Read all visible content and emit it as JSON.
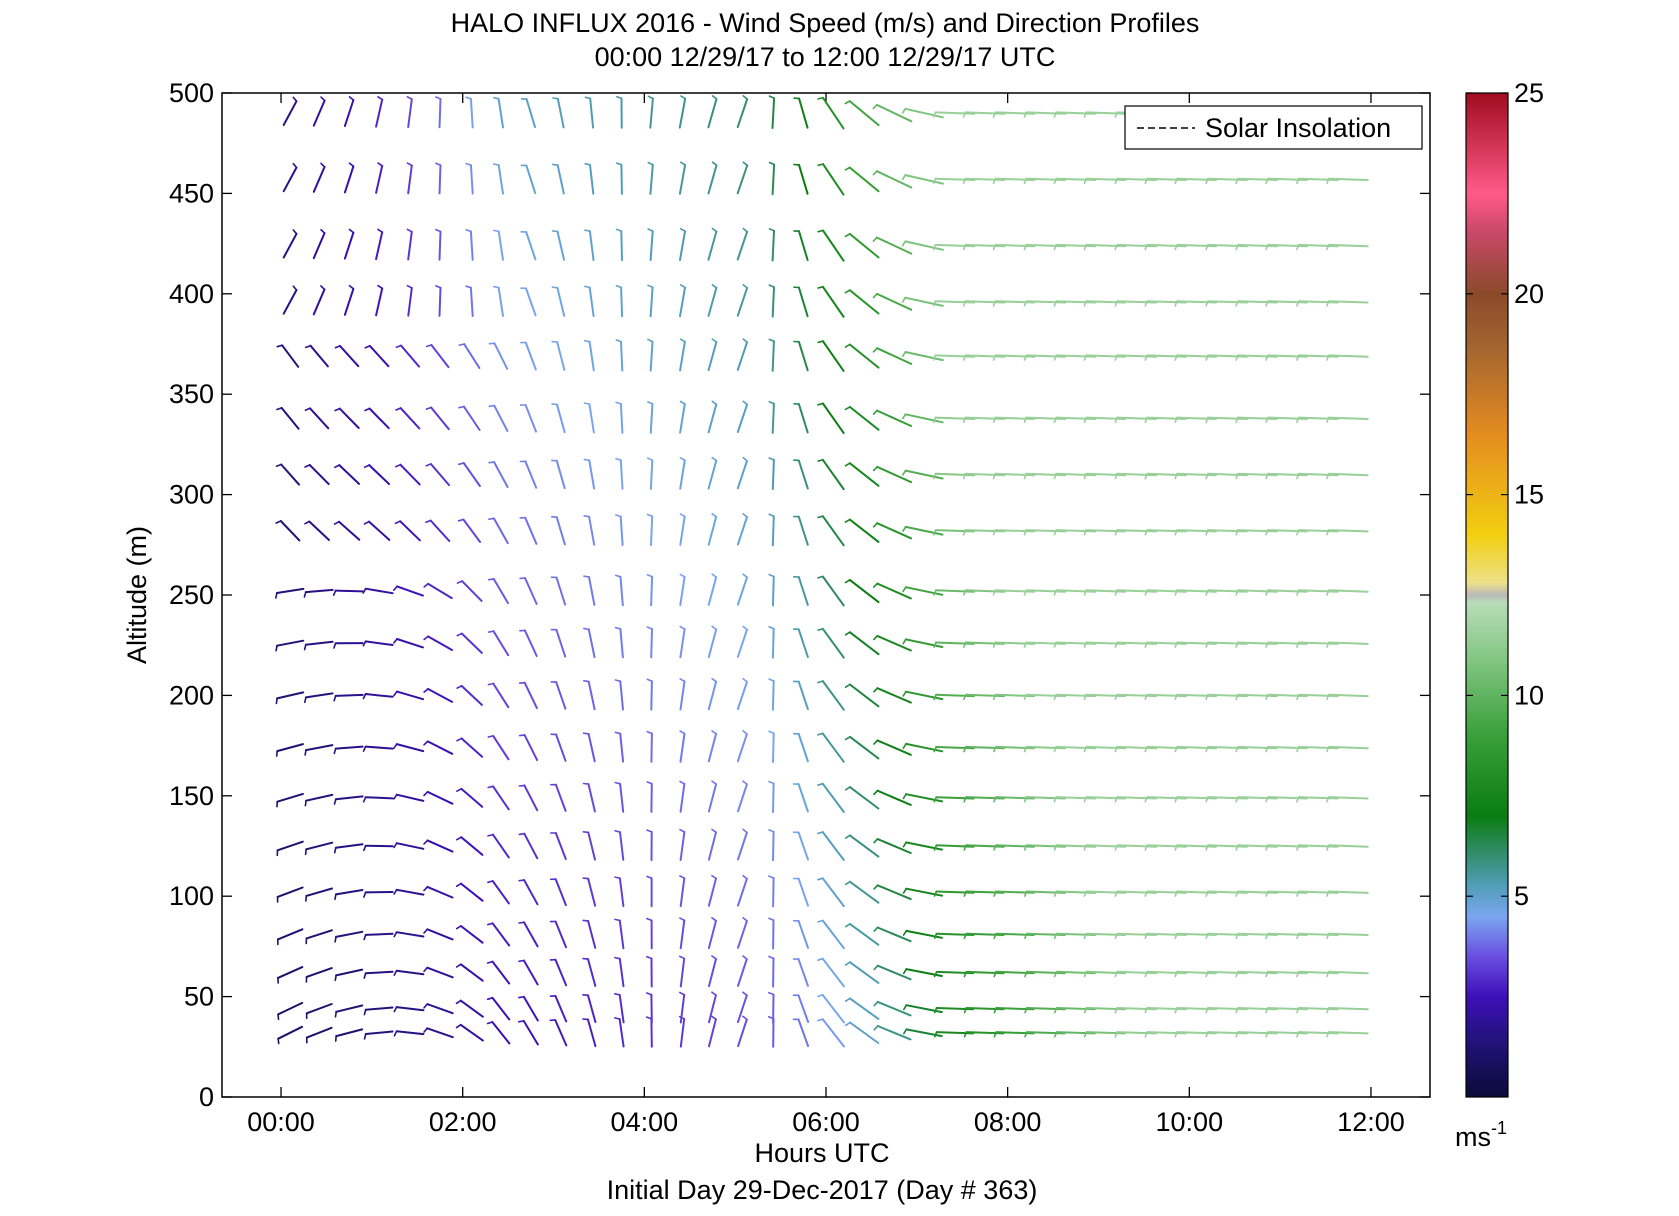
{
  "chart_data": {
    "type": "barb",
    "title": "HALO INFLUX 2016 - Wind Speed (m/s) and Direction Profiles",
    "subtitle": "00:00 12/29/17 to 12:00 12/29/17  UTC",
    "xlabel": "Hours UTC",
    "ylabel": "Altitude (m)",
    "footer": "Initial Day 29-Dec-2017 (Day # 363)",
    "xlim": [
      -0.65,
      12.65
    ],
    "ylim": [
      0,
      500
    ],
    "x_ticks": [
      0,
      2,
      4,
      6,
      8,
      10,
      12
    ],
    "x_tick_labels": [
      "00:00",
      "02:00",
      "04:00",
      "06:00",
      "08:00",
      "10:00",
      "12:00"
    ],
    "y_ticks": [
      0,
      50,
      100,
      150,
      200,
      250,
      300,
      350,
      400,
      450,
      500
    ],
    "y_tick_labels": [
      "0",
      "50",
      "100",
      "150",
      "200",
      "250",
      "300",
      "350",
      "400",
      "450",
      "500"
    ],
    "legend": {
      "entries": [
        "Solar Insolation"
      ],
      "placement": "top-right",
      "line_style": "dashed"
    },
    "colorbar": {
      "range": [
        0,
        25
      ],
      "ticks": [
        5,
        10,
        15,
        20,
        25
      ],
      "tick_labels": [
        "5",
        "10",
        "15",
        "20",
        "25"
      ],
      "unit_base": "ms",
      "unit_exp": "-1",
      "stops": [
        {
          "v": 0,
          "c": "#0b0b3a"
        },
        {
          "v": 1.2,
          "c": "#1e1270"
        },
        {
          "v": 2.5,
          "c": "#3d10b8"
        },
        {
          "v": 3.5,
          "c": "#6a4fe0"
        },
        {
          "v": 4.5,
          "c": "#7aa6f0"
        },
        {
          "v": 5.3,
          "c": "#4f9db4"
        },
        {
          "v": 6.2,
          "c": "#2d8a5e"
        },
        {
          "v": 7.0,
          "c": "#0a7d12"
        },
        {
          "v": 9.0,
          "c": "#3aa03a"
        },
        {
          "v": 11.0,
          "c": "#86c886"
        },
        {
          "v": 12.3,
          "c": "#b8dcb8"
        },
        {
          "v": 12.5,
          "c": "#b9b9b9"
        },
        {
          "v": 12.8,
          "c": "#ede08a"
        },
        {
          "v": 14.0,
          "c": "#f2cf10"
        },
        {
          "v": 16.5,
          "c": "#e48c20"
        },
        {
          "v": 18.5,
          "c": "#a8682f"
        },
        {
          "v": 20.0,
          "c": "#8a4a2a"
        },
        {
          "v": 21.5,
          "c": "#c84868"
        },
        {
          "v": 22.5,
          "c": "#ff5a88"
        },
        {
          "v": 25.0,
          "c": "#a00c20"
        }
      ]
    },
    "barb_levels_m": [
      32,
      44,
      62,
      81,
      102,
      125,
      149,
      174,
      200,
      226,
      252,
      282,
      310,
      338,
      369,
      396,
      424,
      457,
      490
    ],
    "barb_times_h": [
      0.1,
      0.42,
      0.75,
      1.08,
      1.42,
      1.75,
      2.1,
      2.42,
      2.75,
      3.08,
      3.42,
      3.75,
      4.08,
      4.42,
      4.75,
      5.08,
      5.42,
      5.75,
      6.08,
      6.42,
      6.75,
      7.08,
      7.42,
      7.75,
      8.08,
      8.42,
      8.75,
      9.08,
      9.42,
      9.75,
      10.08,
      10.42,
      10.75,
      11.08,
      11.42,
      11.75
    ],
    "wind_field_note_kept_out": null
  }
}
